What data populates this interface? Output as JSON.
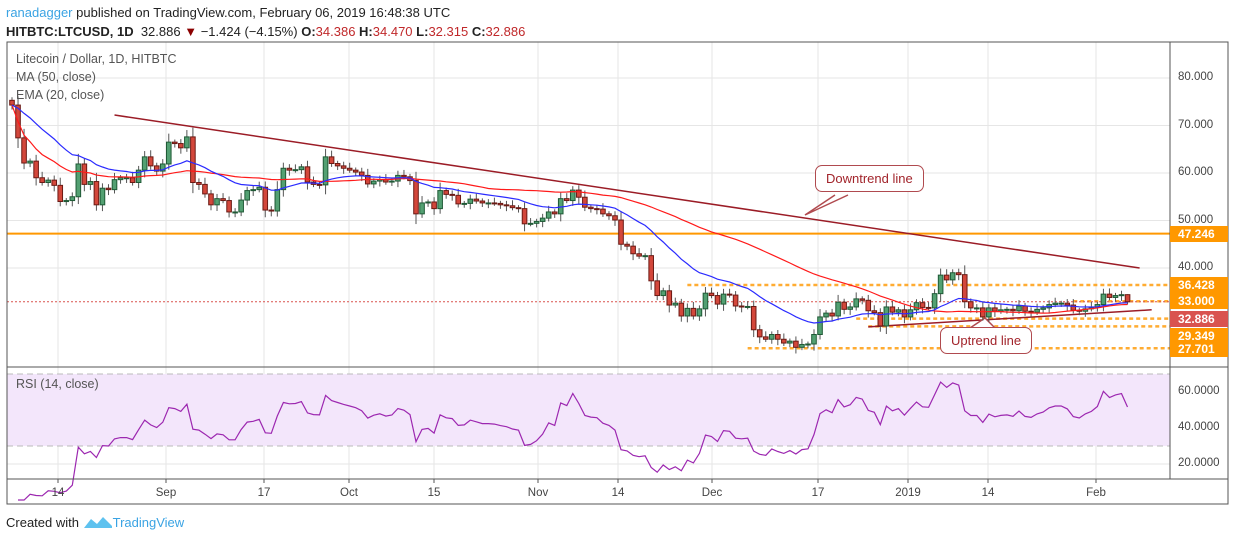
{
  "header": {
    "user": "ranadagger",
    "published": "published on TradingView.com, February 06, 2019 16:48:38 UTC",
    "symbol": "HITBTC:LTCUSD, 1D",
    "last": "32.886",
    "change": "−1.424 (−4.15%)",
    "o_label": "O:",
    "o": "34.386",
    "h_label": "H:",
    "h": "34.470",
    "l_label": "L:",
    "l": "32.315",
    "c_label": "C:",
    "c": "32.886",
    "direction_icon": "triangle-down-icon"
  },
  "legend": {
    "title": "Litecoin / Dollar, 1D, HITBTC",
    "ma": "MA (50, close)",
    "ema": "EMA (20, close)",
    "rsi": "RSI (14, close)"
  },
  "colors": {
    "up": "#53a072",
    "down": "#d3473b",
    "ma": "#ff1a1a",
    "ema": "#2b2bff",
    "trend": "#9b1c26",
    "level": "#ff9800",
    "rsi": "#9c27b0",
    "rsi_band": "#f3e6fb",
    "last_price": "#d9534f"
  },
  "chart_data": {
    "type": "candlestick",
    "title": "Litecoin / Dollar, 1D, HITBTC",
    "ylim": [
      20,
      85
    ],
    "y_ticks": [
      "80.000",
      "70.000",
      "60.000",
      "50.000",
      "40.000"
    ],
    "x_ticks": [
      "14",
      "Sep",
      "17",
      "Oct",
      "15",
      "Nov",
      "14",
      "Dec",
      "17",
      "2019",
      "14",
      "Feb"
    ],
    "first_open": 75.3,
    "close": [
      74.3,
      67.4,
      62.1,
      62.5,
      59,
      58,
      58.5,
      57.4,
      54,
      54.2,
      55,
      61.9,
      57.6,
      58.2,
      53.3,
      56.8,
      56.5,
      58.6,
      59,
      59,
      58,
      60.6,
      63.4,
      61.5,
      60.4,
      61.9,
      66.5,
      66.2,
      65.3,
      67.6,
      58,
      57.6,
      55.6,
      53.3,
      54.6,
      54.2,
      51.8,
      51.8,
      54.3,
      56.3,
      56.5,
      57,
      52.2,
      52,
      56.5,
      61,
      60.6,
      60.7,
      61.3,
      58.1,
      57.6,
      57.5,
      63.4,
      62,
      61.5,
      61,
      60.6,
      60.2,
      59.5,
      57.7,
      58.3,
      58.6,
      58.1,
      58.3,
      59.5,
      59.2,
      58.4,
      51.4,
      53.7,
      53.9,
      52.5,
      56.3,
      55.5,
      55.3,
      53.5,
      53.6,
      54.5,
      54.1,
      53.7,
      53.7,
      53.6,
      53.3,
      53.1,
      52.7,
      52.5,
      49.3,
      49.4,
      49.8,
      50.5,
      51.8,
      51.4,
      54.6,
      54.2,
      56.4,
      54.9,
      52.8,
      52.5,
      52.4,
      51.4,
      51,
      50.1,
      45,
      44.6,
      43,
      42.5,
      42.6,
      37.3,
      34.2,
      35.2,
      32.2,
      32.6,
      29.9,
      31.5,
      29.9,
      31.4,
      34.7,
      34.2,
      32.4,
      34.5,
      34.3,
      32,
      31.8,
      31.9,
      27,
      25.5,
      25,
      26,
      25,
      24.2,
      24.6,
      23.3,
      23.9,
      24,
      26,
      29.7,
      30.5,
      29.9,
      32.8,
      31.3,
      31.8,
      33.5,
      33.2,
      31,
      30.6,
      27.8,
      31.8,
      30.7,
      31.2,
      29.7,
      31.2,
      32.7,
      31.7,
      31.6,
      34.6,
      38.5,
      37.5,
      39,
      38.6,
      32.9,
      31.6,
      31.6,
      29.7,
      31.6,
      30.9,
      31.2,
      31.3,
      31,
      32,
      30.9,
      30.7,
      31.3,
      31.6,
      32.3,
      32.6,
      32.6,
      32.2,
      31.1,
      30.9,
      31.4,
      31.7,
      32.3,
      34.5,
      33.8,
      34.2,
      34.386,
      32.886
    ],
    "last_bar": {
      "open": 34.386,
      "high": 34.47,
      "low": 32.315,
      "close": 32.886
    },
    "indicators": [
      {
        "name": "MA (50, close)",
        "type": "sma",
        "period": 50
      },
      {
        "name": "EMA (20, close)",
        "type": "ema",
        "period": 20
      }
    ],
    "rsi": {
      "name": "RSI (14, close)",
      "period": 14,
      "ylim": [
        10,
        72
      ],
      "bands": [
        30,
        70
      ],
      "y_ticks": [
        "60.0000",
        "40.0000",
        "20.0000"
      ]
    },
    "levels": [
      {
        "price": 47.246,
        "label": "47.246",
        "style": "solid",
        "from_bar": 0
      },
      {
        "price": 36.428,
        "label": "36.428",
        "style": "dashed",
        "from_bar": 112
      },
      {
        "price": 33.0,
        "label": "33.000",
        "style": "dashed",
        "from_bar": 176
      },
      {
        "price": 29.349,
        "label": "29.349",
        "style": "dashed",
        "from_bar": 140
      },
      {
        "price": 27.701,
        "label": "27.701",
        "style": "dashed",
        "from_bar": 142
      },
      {
        "price": 23.1,
        "label": "",
        "style": "dashed",
        "from_bar": 122
      }
    ],
    "last_price_label": "32.886",
    "trendlines": [
      {
        "name": "Downtrend line",
        "start_bar": 17,
        "start_price": 72.2,
        "end_bar": 187,
        "end_price": 40.0
      },
      {
        "name": "Uptrend line",
        "start_bar": 142,
        "start_price": 27.6,
        "end_bar": 189,
        "end_price": 31.2
      }
    ],
    "annotations": [
      "Downtrend line",
      "Uptrend line"
    ]
  },
  "footer": {
    "created": "Created with",
    "brand": "TradingView",
    "logo_icon": "tradingview-logo-icon"
  }
}
